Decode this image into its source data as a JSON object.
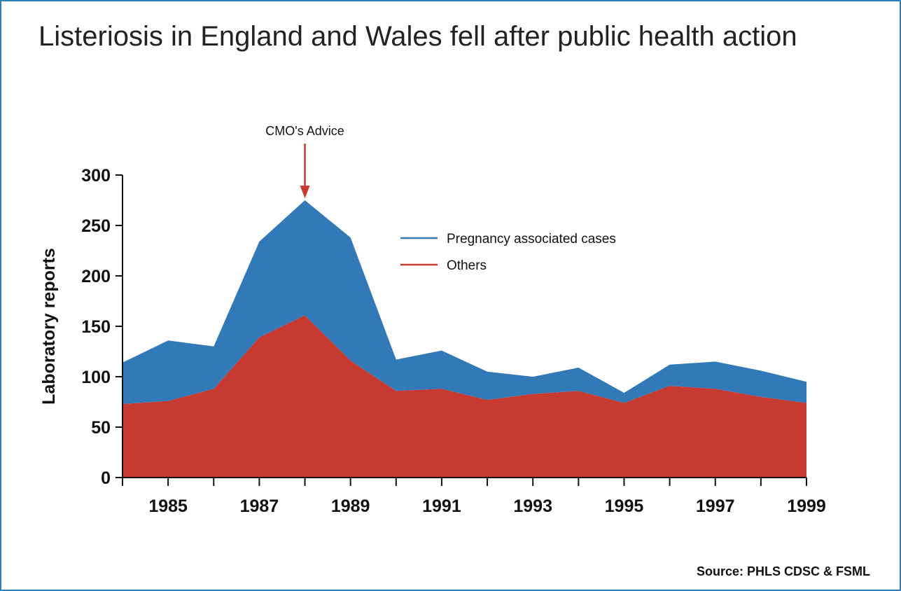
{
  "title": "Listeriosis in England and Wales fell after public health action",
  "source": "Source: PHLS CDSC & FSML",
  "chart_data": {
    "type": "area",
    "stacked": true,
    "x": [
      1984,
      1985,
      1986,
      1987,
      1988,
      1989,
      1990,
      1991,
      1992,
      1993,
      1994,
      1995,
      1996,
      1997,
      1998,
      1999
    ],
    "xticks": [
      1985,
      1987,
      1989,
      1991,
      1993,
      1995,
      1997,
      1999
    ],
    "xtick_labels": [
      "1985",
      "1987",
      "1989",
      "1991",
      "1993",
      "1995",
      "1997",
      "1999"
    ],
    "yticks": [
      0,
      50,
      100,
      150,
      200,
      250,
      300
    ],
    "ytick_labels": [
      "0",
      "50",
      "100",
      "150",
      "200",
      "250",
      "300"
    ],
    "xlim": [
      1984,
      1999
    ],
    "ylim": [
      0,
      300
    ],
    "xlabel": "",
    "ylabel": "Laboratory reports",
    "grid": false,
    "legend_position": "upper-center",
    "series": [
      {
        "name": "Others",
        "color": "#c63a31",
        "values": [
          73,
          76,
          88,
          139,
          161,
          116,
          86,
          88,
          77,
          83,
          86,
          74,
          91,
          88,
          80,
          74
        ]
      },
      {
        "name": "Pregnancy associated cases",
        "color": "#3179b7",
        "values": [
          41,
          60,
          42,
          95,
          114,
          122,
          31,
          38,
          28,
          17,
          23,
          10,
          21,
          27,
          26,
          21
        ]
      }
    ],
    "legend_order": [
      "Pregnancy associated cases",
      "Others"
    ],
    "annotations": [
      {
        "text": "CMO's Advice",
        "x": 1988,
        "arrow_to_y": 277,
        "color": "#c63a31"
      }
    ]
  }
}
